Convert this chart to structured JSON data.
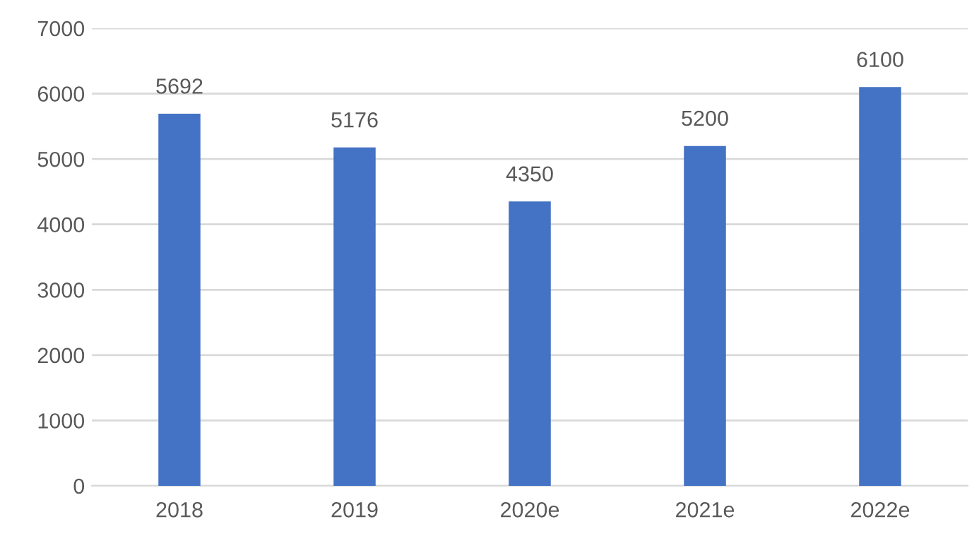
{
  "chart_data": {
    "type": "bar",
    "categories": [
      "2018",
      "2019",
      "2020e",
      "2021e",
      "2022e"
    ],
    "values": [
      5692,
      5176,
      4350,
      5200,
      6100
    ],
    "color": "#4472c4",
    "ylim": [
      0,
      7000
    ],
    "yticks": [
      0,
      1000,
      2000,
      3000,
      4000,
      5000,
      6000,
      7000
    ],
    "grid": "y",
    "data_labels": true
  }
}
